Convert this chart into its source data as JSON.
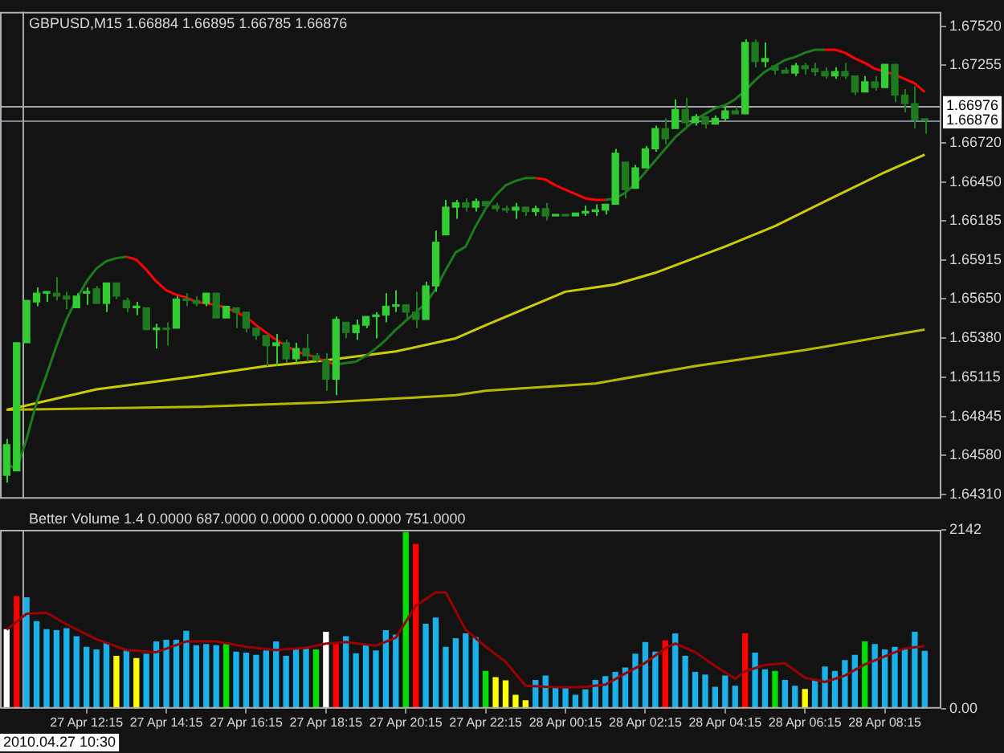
{
  "chart_data": [
    {
      "type": "candlestick",
      "title": "GBPUSD,M15 1.66884 1.66895 1.66785 1.66876",
      "colors": [
        "#33cc33",
        "#33cc33",
        "#33cc33",
        "#33cc33",
        "#33cc33",
        "#1f7a1f",
        "#1f7a1f",
        "#33cc33",
        "#33cc33",
        "#1f7a1f",
        "#33cc33",
        "#1f7a1f",
        "#1f7a1f",
        "#33cc33",
        "#1f7a1f",
        "#33cc33",
        "#1f7a1f",
        "#33cc33",
        "#1f7a1f",
        "#1f7a1f",
        "#33cc33",
        "#1f7a1f",
        "#33cc33",
        "#1f7a1f",
        "#1f7a1f",
        "#1f7a1f",
        "#1f7a1f",
        "#33cc33",
        "#1f7a1f",
        "#33cc33",
        "#1f7a1f",
        "#1f7a1f",
        "#1f7a1f",
        "#33cc33",
        "#1f7a1f",
        "#33cc33",
        "#33cc33",
        "#33cc33",
        "#33cc33",
        "#33cc33",
        "#1f7a1f",
        "#1f7a1f",
        "#33cc33",
        "#33cc33",
        "#33cc33",
        "#33cc33",
        "#1f7a1f",
        "#33cc33",
        "#1f7a1f",
        "#1f7a1f",
        "#1f7a1f",
        "#33cc33",
        "#1f7a1f",
        "#33cc33",
        "#1f7a1f",
        "#33cc33",
        "#1f7a1f",
        "#33cc33",
        "#33cc33",
        "#33cc33",
        "#33cc33",
        "#33cc33",
        "#1f7a1f",
        "#33cc33",
        "#33cc33",
        "#33cc33",
        "#1f7a1f",
        "#33cc33",
        "#1f7a1f",
        "#33cc33",
        "#1f7a1f",
        "#33cc33",
        "#33cc33",
        "#1f7a1f",
        "#33cc33",
        "#1f7a1f",
        "#33cc33",
        "#1f7a1f",
        "#1f7a1f",
        "#33cc33",
        "#1f7a1f",
        "#1f7a1f",
        "#1f7a1f",
        "#33cc33",
        "#1f7a1f",
        "#1f7a1f",
        "#33cc33",
        "#1f7a1f",
        "#33cc33",
        "#1f7a1f",
        "#1f7a1f",
        "#1f7a1f",
        "#1f7a1f"
      ],
      "x": [
        "2010-04-27T10:15",
        "2010-04-27T10:30",
        "2010-04-27T10:45",
        "2010-04-27T11:00",
        "2010-04-27T11:15",
        "2010-04-27T11:30",
        "2010-04-27T11:45",
        "2010-04-27T12:00",
        "2010-04-27T12:15",
        "2010-04-27T12:30",
        "2010-04-27T12:45",
        "2010-04-27T13:00",
        "2010-04-27T13:15",
        "2010-04-27T13:30",
        "2010-04-27T13:45",
        "2010-04-27T14:00",
        "2010-04-27T14:15",
        "2010-04-27T14:30",
        "2010-04-27T14:45",
        "2010-04-27T15:00",
        "2010-04-27T15:15",
        "2010-04-27T15:30",
        "2010-04-27T15:45",
        "2010-04-27T16:00",
        "2010-04-27T16:15",
        "2010-04-27T16:30",
        "2010-04-27T16:45",
        "2010-04-27T17:00",
        "2010-04-27T17:15",
        "2010-04-27T17:30",
        "2010-04-27T17:45",
        "2010-04-27T18:00",
        "2010-04-27T18:15",
        "2010-04-27T18:30",
        "2010-04-27T18:45",
        "2010-04-27T19:00",
        "2010-04-27T19:15",
        "2010-04-27T19:30",
        "2010-04-27T19:45",
        "2010-04-27T20:00",
        "2010-04-27T20:15",
        "2010-04-27T20:30",
        "2010-04-27T20:45",
        "2010-04-27T21:00",
        "2010-04-27T21:15",
        "2010-04-27T21:30",
        "2010-04-27T21:45",
        "2010-04-27T22:00",
        "2010-04-27T22:15",
        "2010-04-27T22:30",
        "2010-04-27T22:45",
        "2010-04-27T23:00",
        "2010-04-27T23:15",
        "2010-04-27T23:30",
        "2010-04-27T23:45",
        "2010-04-28T00:00",
        "2010-04-28T00:15",
        "2010-04-28T00:30",
        "2010-04-28T00:45",
        "2010-04-28T01:00",
        "2010-04-28T01:15",
        "2010-04-28T01:30",
        "2010-04-28T01:45",
        "2010-04-28T02:00",
        "2010-04-28T02:15",
        "2010-04-28T02:30",
        "2010-04-28T02:45",
        "2010-04-28T03:00",
        "2010-04-28T03:15",
        "2010-04-28T03:30",
        "2010-04-28T03:45",
        "2010-04-28T04:00",
        "2010-04-28T04:15",
        "2010-04-28T04:30",
        "2010-04-28T04:45",
        "2010-04-28T05:00",
        "2010-04-28T05:15",
        "2010-04-28T05:30",
        "2010-04-28T05:45",
        "2010-04-28T06:00",
        "2010-04-28T06:15",
        "2010-04-28T06:30",
        "2010-04-28T06:45",
        "2010-04-28T07:00",
        "2010-04-28T07:15",
        "2010-04-28T07:30",
        "2010-04-28T07:45",
        "2010-04-28T08:00",
        "2010-04-28T08:15",
        "2010-04-28T08:30",
        "2010-04-28T08:45",
        "2010-04-28T09:00",
        "2010-04-28T09:15"
      ],
      "ohlc": [
        [
          1.6444,
          1.6469,
          1.6439,
          1.6465
        ],
        [
          1.6447,
          1.6535,
          1.6446,
          1.6535
        ],
        [
          1.6535,
          1.6565,
          1.6535,
          1.6564
        ],
        [
          1.6563,
          1.6573,
          1.656,
          1.6569
        ],
        [
          1.6569,
          1.657,
          1.6563,
          1.6569
        ],
        [
          1.6569,
          1.658,
          1.6564,
          1.6567
        ],
        [
          1.6567,
          1.657,
          1.6558,
          1.6565
        ],
        [
          1.6559,
          1.6569,
          1.6558,
          1.6567
        ],
        [
          1.6569,
          1.6573,
          1.6561,
          1.657
        ],
        [
          1.6572,
          1.6574,
          1.6561,
          1.6562
        ],
        [
          1.6562,
          1.6577,
          1.6556,
          1.6576
        ],
        [
          1.6576,
          1.6576,
          1.6565,
          1.6567
        ],
        [
          1.6564,
          1.6566,
          1.6556,
          1.6559
        ],
        [
          1.6559,
          1.6563,
          1.6554,
          1.6559
        ],
        [
          1.6559,
          1.656,
          1.6544,
          1.6544
        ],
        [
          1.6544,
          1.6548,
          1.6531,
          1.6545
        ],
        [
          1.6545,
          1.6549,
          1.6533,
          1.6544
        ],
        [
          1.6545,
          1.6567,
          1.6545,
          1.6565
        ],
        [
          1.6565,
          1.6569,
          1.656,
          1.6564
        ],
        [
          1.6564,
          1.6567,
          1.656,
          1.6562
        ],
        [
          1.6562,
          1.657,
          1.656,
          1.6569
        ],
        [
          1.6569,
          1.6569,
          1.6551,
          1.6552
        ],
        [
          1.6552,
          1.6561,
          1.6551,
          1.656
        ],
        [
          1.6559,
          1.6559,
          1.6545,
          1.6556
        ],
        [
          1.6556,
          1.6556,
          1.6542,
          1.6545
        ],
        [
          1.6545,
          1.6545,
          1.6537,
          1.654
        ],
        [
          1.654,
          1.654,
          1.6519,
          1.6533
        ],
        [
          1.6533,
          1.6541,
          1.6519,
          1.6535
        ],
        [
          1.6535,
          1.6537,
          1.6521,
          1.6524
        ],
        [
          1.6524,
          1.6535,
          1.6521,
          1.6531
        ],
        [
          1.6531,
          1.6541,
          1.6522,
          1.6526
        ],
        [
          1.6526,
          1.6528,
          1.6521,
          1.6523
        ],
        [
          1.6523,
          1.6528,
          1.6502,
          1.651
        ],
        [
          1.651,
          1.6553,
          1.6499,
          1.6551
        ],
        [
          1.6549,
          1.6549,
          1.6538,
          1.6542
        ],
        [
          1.6542,
          1.6551,
          1.6537,
          1.6547
        ],
        [
          1.6547,
          1.6554,
          1.6545,
          1.6553
        ],
        [
          1.6553,
          1.6556,
          1.6538,
          1.6554
        ],
        [
          1.6554,
          1.6569,
          1.6549,
          1.656
        ],
        [
          1.656,
          1.6571,
          1.6556,
          1.6561
        ],
        [
          1.6561,
          1.6562,
          1.6551,
          1.6556
        ],
        [
          1.6556,
          1.657,
          1.6545,
          1.6551
        ],
        [
          1.6551,
          1.6577,
          1.6551,
          1.6574
        ],
        [
          1.6574,
          1.6612,
          1.657,
          1.6604
        ],
        [
          1.6609,
          1.6633,
          1.6609,
          1.6628
        ],
        [
          1.6628,
          1.6633,
          1.662,
          1.6631
        ],
        [
          1.6631,
          1.6634,
          1.6625,
          1.6628
        ],
        [
          1.6628,
          1.6634,
          1.6625,
          1.6632
        ],
        [
          1.6632,
          1.6633,
          1.6628,
          1.6629
        ],
        [
          1.6629,
          1.6631,
          1.6625,
          1.6627
        ],
        [
          1.6627,
          1.6629,
          1.6624,
          1.6626
        ],
        [
          1.6626,
          1.6631,
          1.662,
          1.6628
        ],
        [
          1.6628,
          1.6629,
          1.6622,
          1.6625
        ],
        [
          1.6625,
          1.6629,
          1.6622,
          1.6627
        ],
        [
          1.6627,
          1.6631,
          1.6619,
          1.6622
        ],
        [
          1.6622,
          1.6624,
          1.6621,
          1.6623
        ],
        [
          1.6623,
          1.6624,
          1.6622,
          1.6622
        ],
        [
          1.6622,
          1.6625,
          1.6622,
          1.6624
        ],
        [
          1.6624,
          1.6629,
          1.6622,
          1.6625
        ],
        [
          1.6625,
          1.663,
          1.6622,
          1.6626
        ],
        [
          1.6626,
          1.6631,
          1.6623,
          1.663
        ],
        [
          1.663,
          1.6668,
          1.663,
          1.6665
        ],
        [
          1.6659,
          1.666,
          1.6634,
          1.664
        ],
        [
          1.6641,
          1.6657,
          1.6641,
          1.6655
        ],
        [
          1.6655,
          1.667,
          1.6655,
          1.6668
        ],
        [
          1.6668,
          1.6684,
          1.6666,
          1.6682
        ],
        [
          1.6682,
          1.6689,
          1.6671,
          1.6675
        ],
        [
          1.6682,
          1.6702,
          1.6682,
          1.6695
        ],
        [
          1.6695,
          1.6703,
          1.6682,
          1.6686
        ],
        [
          1.6686,
          1.6692,
          1.6684,
          1.669
        ],
        [
          1.669,
          1.6691,
          1.6682,
          1.6685
        ],
        [
          1.6685,
          1.6691,
          1.6684,
          1.6689
        ],
        [
          1.6689,
          1.6697,
          1.6687,
          1.6694
        ],
        [
          1.6694,
          1.6697,
          1.6692,
          1.6692
        ],
        [
          1.6692,
          1.6743,
          1.6692,
          1.6741
        ],
        [
          1.6741,
          1.6743,
          1.6724,
          1.6728
        ],
        [
          1.6728,
          1.6741,
          1.6724,
          1.673
        ],
        [
          1.6725,
          1.6725,
          1.6719,
          1.6722
        ],
        [
          1.6722,
          1.6724,
          1.6719,
          1.672
        ],
        [
          1.672,
          1.6727,
          1.6718,
          1.6725
        ],
        [
          1.6725,
          1.6727,
          1.6719,
          1.6723
        ],
        [
          1.6723,
          1.6727,
          1.6718,
          1.6721
        ],
        [
          1.6721,
          1.6724,
          1.6716,
          1.6718
        ],
        [
          1.6718,
          1.6724,
          1.6716,
          1.6721
        ],
        [
          1.6721,
          1.6727,
          1.6716,
          1.6718
        ],
        [
          1.6718,
          1.6718,
          1.6705,
          1.6707
        ],
        [
          1.6707,
          1.6718,
          1.6707,
          1.6714
        ],
        [
          1.6714,
          1.6718,
          1.6708,
          1.671
        ],
        [
          1.671,
          1.6727,
          1.6709,
          1.6726
        ],
        [
          1.6726,
          1.6727,
          1.67,
          1.6705
        ],
        [
          1.6705,
          1.6709,
          1.6693,
          1.6699
        ],
        [
          1.6699,
          1.6711,
          1.6682,
          1.6688
        ],
        [
          1.66884,
          1.66895,
          1.66785,
          1.66876
        ]
      ],
      "series": [
        {
          "type": "line",
          "color": "#1c7c1c",
          "values": [
            1.6452,
            1.6448,
            1.6469,
            1.6494,
            1.6513,
            1.6533,
            1.6551,
            1.6565,
            1.6577,
            1.6586,
            1.6591,
            1.6593,
            1.6594,
            null,
            null,
            null,
            null,
            null,
            null,
            null,
            null,
            null,
            null,
            null,
            null,
            null,
            null,
            null,
            null,
            null,
            null,
            null,
            null,
            1.652,
            1.6521,
            1.6522,
            1.6526,
            1.6531,
            1.6537,
            1.6544,
            1.655,
            1.6556,
            1.6562,
            1.6572,
            1.6585,
            1.6597,
            1.6601,
            1.6615,
            1.6627,
            1.6636,
            1.6643,
            1.6646,
            1.6648,
            1.6648,
            null,
            null,
            null,
            null,
            null,
            null,
            1.6633,
            1.6634,
            1.6638,
            1.6644,
            1.6652,
            1.666,
            1.6668,
            1.6676,
            1.6682,
            1.6688,
            1.6692,
            1.6696,
            1.6698,
            1.6702,
            1.6708,
            1.6715,
            1.6721,
            1.6725,
            1.6729,
            1.6731,
            1.6734,
            1.6736,
            1.6736,
            null,
            null,
            null,
            null,
            null,
            null,
            null,
            null,
            null,
            null
          ]
        },
        {
          "type": "line",
          "color": "#ff0000",
          "values": [
            null,
            null,
            null,
            null,
            null,
            null,
            null,
            null,
            null,
            null,
            null,
            null,
            1.6594,
            1.6592,
            1.6585,
            1.6577,
            1.6571,
            1.6568,
            1.6566,
            1.6563,
            1.6562,
            1.6561,
            1.6559,
            1.6556,
            1.6553,
            1.6547,
            1.6542,
            1.6537,
            1.6533,
            1.6529,
            1.6527,
            1.6525,
            1.6522,
            1.652,
            null,
            null,
            null,
            null,
            null,
            null,
            null,
            null,
            null,
            null,
            null,
            null,
            null,
            null,
            null,
            null,
            null,
            null,
            null,
            1.6648,
            1.6647,
            1.6643,
            1.664,
            1.6637,
            1.6634,
            1.6633,
            1.6633,
            null,
            null,
            null,
            null,
            null,
            null,
            null,
            null,
            null,
            null,
            null,
            null,
            null,
            null,
            null,
            null,
            null,
            null,
            null,
            null,
            null,
            1.6736,
            1.6736,
            1.6734,
            1.673,
            1.6727,
            1.6723,
            1.6721,
            1.6719,
            1.6716,
            1.6713,
            1.6707
          ]
        },
        {
          "type": "line",
          "color": "#cccc00",
          "x": [
            "2010-04-27T10:15",
            "2010-04-27T10:45",
            "2010-04-27T12:30",
            "2010-04-27T15:00",
            "2010-04-27T16:45",
            "2010-04-27T18:15",
            "2010-04-27T20:00",
            "2010-04-27T21:30",
            "2010-04-27T22:15",
            "2010-04-28T00:15",
            "2010-04-28T01:30",
            "2010-04-28T02:30",
            "2010-04-28T04:15",
            "2010-04-28T05:30",
            "2010-04-28T06:45",
            "2010-04-28T08:15",
            "2010-04-28T09:15"
          ],
          "values": [
            1.6489,
            1.6492,
            1.6503,
            1.6512,
            1.6519,
            1.6523,
            1.6529,
            1.6538,
            1.6547,
            1.657,
            1.6575,
            1.6583,
            1.6601,
            1.6615,
            1.6632,
            1.6652,
            1.6664
          ]
        },
        {
          "type": "line",
          "color": "#b8b800",
          "x": [
            "2010-04-27T10:15",
            "2010-04-27T12:30",
            "2010-04-27T15:00",
            "2010-04-27T18:15",
            "2010-04-27T21:30",
            "2010-04-27T22:15",
            "2010-04-28T01:00",
            "2010-04-28T03:30",
            "2010-04-28T06:15",
            "2010-04-28T09:15"
          ],
          "values": [
            1.6489,
            1.649,
            1.6491,
            1.6494,
            1.6499,
            1.6502,
            1.6507,
            1.6519,
            1.653,
            1.6544
          ]
        }
      ],
      "xlim": [
        "2010-04-27T10:05",
        "2010-04-28T09:40"
      ],
      "ylim": [
        1.6428,
        1.6762
      ],
      "yticks": [
        {
          "value": 1.6752,
          "label": "1.67520"
        },
        {
          "value": 1.67255,
          "label": "1.67255"
        },
        {
          "value": 1.6672,
          "label": "1.66720"
        },
        {
          "value": 1.6645,
          "label": "1.66450"
        },
        {
          "value": 1.66185,
          "label": "1.66185"
        },
        {
          "value": 1.65915,
          "label": "1.65915"
        },
        {
          "value": 1.6565,
          "label": "1.65650"
        },
        {
          "value": 1.6538,
          "label": "1.65380"
        },
        {
          "value": 1.65115,
          "label": "1.65115"
        },
        {
          "value": 1.64845,
          "label": "1.64845"
        },
        {
          "value": 1.6458,
          "label": "1.64580"
        },
        {
          "value": 1.6431,
          "label": "1.64310"
        }
      ],
      "tick_labels": "y",
      "ref_lines": [
        {
          "axis": "y",
          "value": 1.66976,
          "label": "1.66976",
          "color": "#a8a8a8"
        },
        {
          "axis": "y",
          "value": 1.66876,
          "label": "1.66876",
          "color": "#7b8a99"
        },
        {
          "axis": "x",
          "value": "2010-04-27T10:39",
          "color": "#a8a8a8"
        }
      ]
    },
    {
      "type": "bar",
      "title": "Better Volume 1.4 0.0000 687.0000 0.0000 0.0000 0.0000 751.0000",
      "x": [
        "2010-04-27T10:15",
        "2010-04-27T10:30",
        "2010-04-27T10:45",
        "2010-04-27T11:00",
        "2010-04-27T11:15",
        "2010-04-27T11:30",
        "2010-04-27T11:45",
        "2010-04-27T12:00",
        "2010-04-27T12:15",
        "2010-04-27T12:30",
        "2010-04-27T12:45",
        "2010-04-27T13:00",
        "2010-04-27T13:15",
        "2010-04-27T13:30",
        "2010-04-27T13:45",
        "2010-04-27T14:00",
        "2010-04-27T14:15",
        "2010-04-27T14:30",
        "2010-04-27T14:45",
        "2010-04-27T15:00",
        "2010-04-27T15:15",
        "2010-04-27T15:30",
        "2010-04-27T15:45",
        "2010-04-27T16:00",
        "2010-04-27T16:15",
        "2010-04-27T16:30",
        "2010-04-27T16:45",
        "2010-04-27T17:00",
        "2010-04-27T17:15",
        "2010-04-27T17:30",
        "2010-04-27T17:45",
        "2010-04-27T18:00",
        "2010-04-27T18:15",
        "2010-04-27T18:30",
        "2010-04-27T18:45",
        "2010-04-27T19:00",
        "2010-04-27T19:15",
        "2010-04-27T19:30",
        "2010-04-27T19:45",
        "2010-04-27T20:00",
        "2010-04-27T20:15",
        "2010-04-27T20:30",
        "2010-04-27T20:45",
        "2010-04-27T21:00",
        "2010-04-27T21:15",
        "2010-04-27T21:30",
        "2010-04-27T21:45",
        "2010-04-27T22:00",
        "2010-04-27T22:15",
        "2010-04-27T22:30",
        "2010-04-27T22:45",
        "2010-04-27T23:00",
        "2010-04-27T23:15",
        "2010-04-27T23:30",
        "2010-04-27T23:45",
        "2010-04-28T00:00",
        "2010-04-28T00:15",
        "2010-04-28T00:30",
        "2010-04-28T00:45",
        "2010-04-28T01:00",
        "2010-04-28T01:15",
        "2010-04-28T01:30",
        "2010-04-28T01:45",
        "2010-04-28T02:00",
        "2010-04-28T02:15",
        "2010-04-28T02:30",
        "2010-04-28T02:45",
        "2010-04-28T03:00",
        "2010-04-28T03:15",
        "2010-04-28T03:30",
        "2010-04-28T03:45",
        "2010-04-28T04:00",
        "2010-04-28T04:15",
        "2010-04-28T04:30",
        "2010-04-28T04:45",
        "2010-04-28T05:00",
        "2010-04-28T05:15",
        "2010-04-28T05:30",
        "2010-04-28T05:45",
        "2010-04-28T06:00",
        "2010-04-28T06:15",
        "2010-04-28T06:30",
        "2010-04-28T06:45",
        "2010-04-28T07:00",
        "2010-04-28T07:15",
        "2010-04-28T07:30",
        "2010-04-28T07:45",
        "2010-04-28T08:00",
        "2010-04-28T08:15",
        "2010-04-28T08:30",
        "2010-04-28T08:45",
        "2010-04-28T09:00",
        "2010-04-28T09:15"
      ],
      "values": [
        946,
        1342,
        1329,
        1042,
        946,
        933,
        958,
        863,
        735,
        703,
        786,
        626,
        690,
        601,
        652,
        799,
        818,
        818,
        927,
        754,
        767,
        754,
        786,
        677,
        665,
        639,
        690,
        799,
        626,
        703,
        716,
        703,
        914,
        767,
        863,
        658,
        754,
        690,
        933,
        882,
        2109,
        1968,
        1010,
        1086,
        735,
        837,
        895,
        850,
        447,
        371,
        332,
        160,
        96,
        339,
        390,
        243,
        256,
        160,
        224,
        339,
        383,
        435,
        486,
        652,
        792,
        677,
        812,
        895,
        626,
        435,
        403,
        256,
        390,
        268,
        895,
        665,
        466,
        447,
        339,
        268,
        230,
        339,
        498,
        447,
        575,
        639,
        799,
        767,
        703,
        735,
        703,
        914,
        687
      ],
      "colors": [
        "#ffffff",
        "#ff0000",
        "#1ab0ea",
        "#1ab0ea",
        "#1ab0ea",
        "#1ab0ea",
        "#1ab0ea",
        "#1ab0ea",
        "#1ab0ea",
        "#1ab0ea",
        "#1ab0ea",
        "#ffff00",
        "#1ab0ea",
        "#ffff00",
        "#1ab0ea",
        "#1ab0ea",
        "#1ab0ea",
        "#1ab0ea",
        "#1ab0ea",
        "#1ab0ea",
        "#1ab0ea",
        "#1ab0ea",
        "#00e000",
        "#1ab0ea",
        "#1ab0ea",
        "#1ab0ea",
        "#1ab0ea",
        "#1ab0ea",
        "#1ab0ea",
        "#1ab0ea",
        "#1ab0ea",
        "#00e000",
        "#ffffff",
        "#ff0000",
        "#1ab0ea",
        "#1ab0ea",
        "#1ab0ea",
        "#1ab0ea",
        "#1ab0ea",
        "#1ab0ea",
        "#00e000",
        "#ff0000",
        "#1ab0ea",
        "#1ab0ea",
        "#1ab0ea",
        "#1ab0ea",
        "#1ab0ea",
        "#1ab0ea",
        "#00e000",
        "#ffff00",
        "#ffff00",
        "#ffff00",
        "#ffff00",
        "#1ab0ea",
        "#1ab0ea",
        "#1ab0ea",
        "#1ab0ea",
        "#1ab0ea",
        "#1ab0ea",
        "#1ab0ea",
        "#1ab0ea",
        "#1ab0ea",
        "#1ab0ea",
        "#1ab0ea",
        "#1ab0ea",
        "#1ab0ea",
        "#ff0000",
        "#1ab0ea",
        "#1ab0ea",
        "#1ab0ea",
        "#1ab0ea",
        "#1ab0ea",
        "#1ab0ea",
        "#1ab0ea",
        "#ff0000",
        "#1ab0ea",
        "#1ab0ea",
        "#00e000",
        "#1ab0ea",
        "#1ab0ea",
        "#ffff00",
        "#1ab0ea",
        "#1ab0ea",
        "#1ab0ea",
        "#1ab0ea",
        "#1ab0ea",
        "#00e000",
        "#1ab0ea",
        "#1ab0ea",
        "#1ab0ea",
        "#1ab0ea",
        "#1ab0ea",
        "#1ab0ea"
      ],
      "series": [
        {
          "type": "line",
          "color": "#990000",
          "x": [
            "2010-04-27T10:15",
            "2010-04-27T10:45",
            "2010-04-27T11:15",
            "2010-04-27T11:45",
            "2010-04-27T12:30",
            "2010-04-27T13:15",
            "2010-04-27T14:00",
            "2010-04-27T14:45",
            "2010-04-27T15:30",
            "2010-04-27T16:15",
            "2010-04-27T17:00",
            "2010-04-27T17:45",
            "2010-04-27T18:15",
            "2010-04-27T18:45",
            "2010-04-27T19:30",
            "2010-04-27T20:00",
            "2010-04-27T20:30",
            "2010-04-27T21:00",
            "2010-04-27T21:15",
            "2010-04-27T21:45",
            "2010-04-27T22:15",
            "2010-04-27T22:45",
            "2010-04-27T23:15",
            "2010-04-27T23:45",
            "2010-04-28T00:15",
            "2010-04-28T00:45",
            "2010-04-28T01:15",
            "2010-04-28T01:45",
            "2010-04-28T02:15",
            "2010-04-28T02:45",
            "2010-04-28T03:00",
            "2010-04-28T03:30",
            "2010-04-28T04:00",
            "2010-04-28T04:30",
            "2010-04-28T04:45",
            "2010-04-28T05:15",
            "2010-04-28T05:45",
            "2010-04-28T06:15",
            "2010-04-28T06:45",
            "2010-04-28T07:15",
            "2010-04-28T07:45",
            "2010-04-28T08:15",
            "2010-04-28T08:45",
            "2010-04-28T09:15"
          ],
          "values": [
            946,
            1137,
            1150,
            1010,
            831,
            703,
            677,
            805,
            805,
            741,
            703,
            728,
            780,
            799,
            754,
            850,
            1233,
            1393,
            1393,
            946,
            741,
            562,
            275,
            262,
            256,
            262,
            288,
            422,
            550,
            722,
            780,
            677,
            511,
            358,
            447,
            524,
            543,
            371,
            320,
            396,
            530,
            626,
            722,
            751
          ]
        }
      ],
      "xlim": [
        "2010-04-27T10:05",
        "2010-04-28T09:40"
      ],
      "xticks": [
        {
          "value": "2010-04-27T12:15",
          "label": "27 Apr 12:15"
        },
        {
          "value": "2010-04-27T14:15",
          "label": "27 Apr 14:15"
        },
        {
          "value": "2010-04-27T16:15",
          "label": "27 Apr 16:15"
        },
        {
          "value": "2010-04-27T18:15",
          "label": "27 Apr 18:15"
        },
        {
          "value": "2010-04-27T20:15",
          "label": "27 Apr 20:15"
        },
        {
          "value": "2010-04-27T22:15",
          "label": "27 Apr 22:15"
        },
        {
          "value": "2010-04-28T00:15",
          "label": "28 Apr 00:15"
        },
        {
          "value": "2010-04-28T02:15",
          "label": "28 Apr 02:15"
        },
        {
          "value": "2010-04-28T04:15",
          "label": "28 Apr 04:15"
        },
        {
          "value": "2010-04-28T06:15",
          "label": "28 Apr 06:15"
        },
        {
          "value": "2010-04-28T08:15",
          "label": "28 Apr 08:15"
        }
      ],
      "ylim": [
        0,
        2142
      ],
      "yticks": [
        2142,
        {
          "value": 0,
          "label": "0.00"
        }
      ],
      "ref_lines": [
        {
          "axis": "x",
          "value": "2010-04-27T10:39",
          "label": "2010.04.27 10:30",
          "color": "#a8a8a8"
        }
      ]
    }
  ]
}
